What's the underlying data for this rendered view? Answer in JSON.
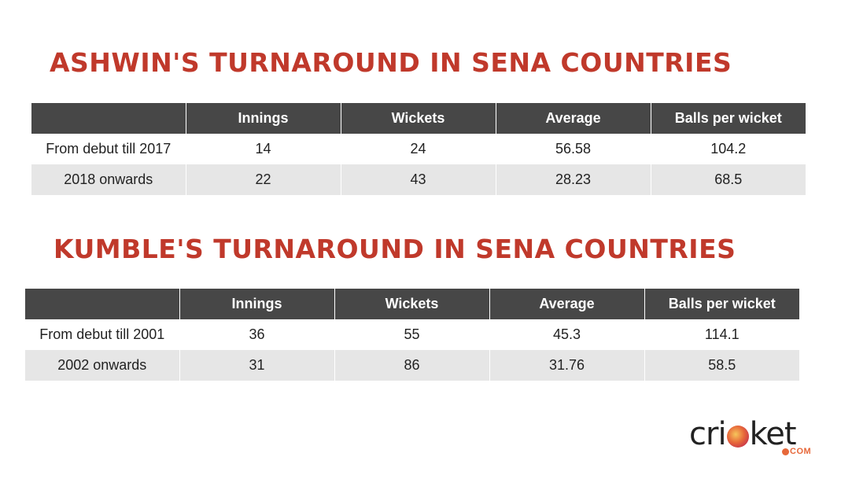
{
  "ashwin": {
    "title": "ASHWIN'S TURNAROUND IN SENA COUNTRIES",
    "headers": [
      "",
      "Innings",
      "Wickets",
      "Average",
      "Balls per wicket"
    ],
    "rows": [
      [
        "From debut till 2017",
        "14",
        "24",
        "56.58",
        "104.2"
      ],
      [
        "2018 onwards",
        "22",
        "43",
        "28.23",
        "68.5"
      ]
    ]
  },
  "kumble": {
    "title": "KUMBLE'S TURNAROUND IN SENA COUNTRIES",
    "headers": [
      "",
      "Innings",
      "Wickets",
      "Average",
      "Balls per wicket"
    ],
    "rows": [
      [
        "From debut till 2001",
        "36",
        "55",
        "45.3",
        "114.1"
      ],
      [
        "2002 onwards",
        "31",
        "86",
        "31.76",
        "58.5"
      ]
    ]
  },
  "logo": {
    "word_left": "cri",
    "word_right": "ket",
    "suffix": "COM"
  },
  "colors": {
    "title": "#c0392b",
    "header_bg": "#474747",
    "row_alt_bg": "#e6e6e6",
    "logo_accent": "#e7683a"
  }
}
